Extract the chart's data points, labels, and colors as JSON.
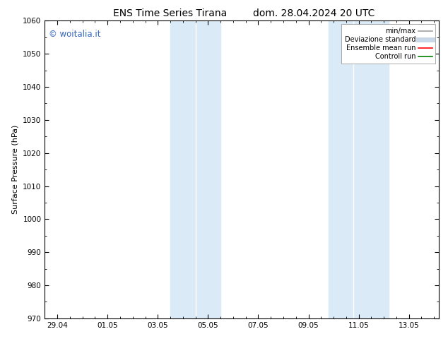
{
  "title_left": "ENS Time Series Tirana",
  "title_right": "dom. 28.04.2024 20 UTC",
  "ylabel": "Surface Pressure (hPa)",
  "ylim": [
    970,
    1060
  ],
  "yticks": [
    970,
    980,
    990,
    1000,
    1010,
    1020,
    1030,
    1040,
    1050,
    1060
  ],
  "xtick_labels": [
    "29.04",
    "01.05",
    "03.05",
    "05.05",
    "07.05",
    "09.05",
    "11.05",
    "13.05"
  ],
  "xtick_positions": [
    0,
    2,
    4,
    6,
    8,
    10,
    12,
    14
  ],
  "xlim": [
    -0.2,
    15.2
  ],
  "shade_bands": [
    {
      "xmin": 4.5,
      "xmax": 5.5
    },
    {
      "xmin": 5.5,
      "xmax": 6.5
    },
    {
      "xmin": 10.8,
      "xmax": 11.8
    },
    {
      "xmin": 11.8,
      "xmax": 13.2
    }
  ],
  "shade_color": "#daeaf7",
  "watermark": "© woitalia.it",
  "watermark_color": "#3366bb",
  "legend_items": [
    {
      "label": "min/max",
      "color": "#a0a0a0",
      "lw": 1.2,
      "ls": "-"
    },
    {
      "label": "Deviazione standard",
      "color": "#c8d8e8",
      "lw": 5,
      "ls": "-"
    },
    {
      "label": "Ensemble mean run",
      "color": "red",
      "lw": 1.2,
      "ls": "-"
    },
    {
      "label": "Controll run",
      "color": "green",
      "lw": 1.2,
      "ls": "-"
    }
  ],
  "background_color": "#ffffff",
  "title_fontsize": 10,
  "axis_fontsize": 8,
  "tick_fontsize": 7.5
}
